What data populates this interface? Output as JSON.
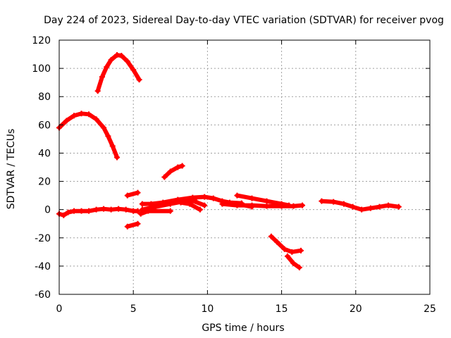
{
  "chart_data": {
    "type": "scatter",
    "title": "Day 224 of 2023, Sidereal Day-to-day VTEC variation (SDTVAR) for receiver pvog",
    "xlabel": "GPS time / hours",
    "ylabel": "SDTVAR / TECUs",
    "xlim": [
      0,
      25
    ],
    "ylim": [
      -60,
      120
    ],
    "xticks": [
      0,
      5,
      10,
      15,
      20,
      25
    ],
    "yticks": [
      -60,
      -40,
      -20,
      0,
      20,
      40,
      60,
      80,
      100,
      120
    ],
    "grid": true,
    "marker_color": "#ff0000",
    "series": [
      {
        "name": "arc-1",
        "points": [
          [
            0.0,
            58
          ],
          [
            0.5,
            63
          ],
          [
            1.0,
            66.5
          ],
          [
            1.5,
            68
          ],
          [
            2.0,
            67.5
          ],
          [
            2.5,
            64
          ],
          [
            3.0,
            58
          ],
          [
            3.3,
            52
          ],
          [
            3.6,
            45
          ],
          [
            3.9,
            37
          ]
        ]
      },
      {
        "name": "arc-2",
        "points": [
          [
            2.6,
            84
          ],
          [
            2.9,
            94
          ],
          [
            3.2,
            101
          ],
          [
            3.5,
            106
          ],
          [
            3.9,
            109.5
          ],
          [
            4.2,
            109
          ],
          [
            4.6,
            105
          ],
          [
            5.0,
            99
          ],
          [
            5.4,
            92
          ]
        ]
      },
      {
        "name": "arc-3",
        "points": [
          [
            0.0,
            -3
          ],
          [
            0.3,
            -4
          ],
          [
            0.6,
            -2
          ],
          [
            1.0,
            -1
          ],
          [
            1.5,
            -1
          ],
          [
            2.0,
            -1
          ],
          [
            2.5,
            0
          ],
          [
            3.0,
            0.5
          ],
          [
            3.5,
            0
          ],
          [
            4.0,
            0.5
          ],
          [
            4.5,
            0
          ],
          [
            5.0,
            -1
          ],
          [
            5.3,
            -1
          ]
        ]
      },
      {
        "name": "arc-4",
        "points": [
          [
            4.6,
            10
          ],
          [
            5.3,
            12
          ]
        ]
      },
      {
        "name": "arc-5",
        "points": [
          [
            4.6,
            -12
          ],
          [
            5.3,
            -10
          ]
        ]
      },
      {
        "name": "arc-6",
        "points": [
          [
            5.5,
            -3
          ],
          [
            6.0,
            -1
          ],
          [
            7.5,
            -1
          ]
        ]
      },
      {
        "name": "arc-7",
        "points": [
          [
            5.6,
            4
          ],
          [
            6.2,
            4
          ],
          [
            7.0,
            5
          ],
          [
            8.0,
            7
          ],
          [
            9.0,
            8.5
          ],
          [
            9.8,
            9
          ],
          [
            10.4,
            8
          ],
          [
            11.0,
            6
          ],
          [
            11.5,
            5
          ],
          [
            12.3,
            4.5
          ]
        ]
      },
      {
        "name": "arc-8",
        "points": [
          [
            5.6,
            0
          ],
          [
            6.5,
            2
          ],
          [
            7.5,
            4
          ],
          [
            8.5,
            6
          ],
          [
            9.2,
            6
          ]
        ]
      },
      {
        "name": "arc-9",
        "points": [
          [
            8.2,
            5
          ],
          [
            8.8,
            4
          ],
          [
            9.5,
            0
          ]
        ]
      },
      {
        "name": "arc-10",
        "points": [
          [
            8.8,
            7
          ],
          [
            9.8,
            3
          ]
        ]
      },
      {
        "name": "arc-11",
        "points": [
          [
            7.1,
            23
          ],
          [
            7.5,
            27
          ],
          [
            8.0,
            30
          ],
          [
            8.3,
            31
          ]
        ]
      },
      {
        "name": "arc-12",
        "points": [
          [
            11.0,
            4
          ],
          [
            12.0,
            3
          ],
          [
            13.0,
            3
          ],
          [
            14.0,
            2.5
          ],
          [
            15.0,
            2.5
          ],
          [
            15.8,
            2.5
          ],
          [
            16.4,
            3
          ]
        ]
      },
      {
        "name": "arc-13",
        "points": [
          [
            12.0,
            10
          ],
          [
            13.0,
            8
          ],
          [
            14.0,
            6
          ],
          [
            15.0,
            4
          ],
          [
            15.5,
            3
          ]
        ]
      },
      {
        "name": "arc-14",
        "points": [
          [
            12.0,
            4
          ],
          [
            13.0,
            2
          ]
        ]
      },
      {
        "name": "arc-15",
        "points": [
          [
            14.3,
            -19
          ],
          [
            14.7,
            -23
          ],
          [
            15.2,
            -28
          ],
          [
            15.7,
            -30
          ],
          [
            16.3,
            -29
          ]
        ]
      },
      {
        "name": "arc-16",
        "points": [
          [
            15.4,
            -33
          ],
          [
            15.8,
            -38
          ],
          [
            16.2,
            -41
          ]
        ]
      },
      {
        "name": "arc-17",
        "points": [
          [
            17.7,
            6
          ],
          [
            18.5,
            5.5
          ],
          [
            19.2,
            4
          ],
          [
            19.8,
            2
          ],
          [
            20.4,
            0
          ],
          [
            21.0,
            1
          ],
          [
            21.6,
            2
          ],
          [
            22.2,
            3
          ],
          [
            22.9,
            2
          ]
        ]
      }
    ]
  }
}
